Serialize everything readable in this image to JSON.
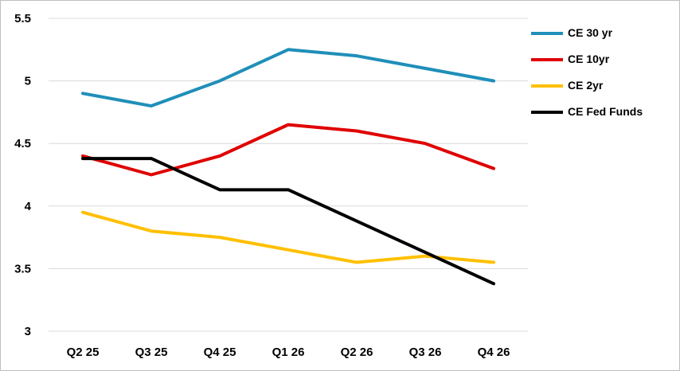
{
  "chart_data": {
    "type": "line",
    "title": "",
    "xlabel": "",
    "ylabel": "",
    "categories": [
      "Q2 25",
      "Q3 25",
      "Q4 25",
      "Q1 26",
      "Q2 26",
      "Q3 26",
      "Q4 26"
    ],
    "ylim": [
      3,
      5.5
    ],
    "yticks": [
      "3",
      "3.5",
      "4",
      "4.5",
      "5",
      "5.5"
    ],
    "grid": true,
    "legend_position": "right",
    "series": [
      {
        "name": "CE 30 yr",
        "color": "#1f8fb9",
        "values": [
          4.9,
          4.8,
          5.0,
          5.25,
          5.2,
          5.1,
          5.0
        ]
      },
      {
        "name": "CE 10yr",
        "color": "#e00000",
        "values": [
          4.4,
          4.25,
          4.4,
          4.65,
          4.6,
          4.5,
          4.3
        ]
      },
      {
        "name": "CE 2yr",
        "color": "#ffc000",
        "values": [
          3.95,
          3.8,
          3.75,
          3.65,
          3.55,
          3.6,
          3.55
        ]
      },
      {
        "name": "CE Fed Funds",
        "color": "#000000",
        "step": true,
        "values": [
          4.38,
          4.38,
          4.13,
          4.13,
          3.88,
          3.63,
          3.38
        ]
      }
    ]
  }
}
